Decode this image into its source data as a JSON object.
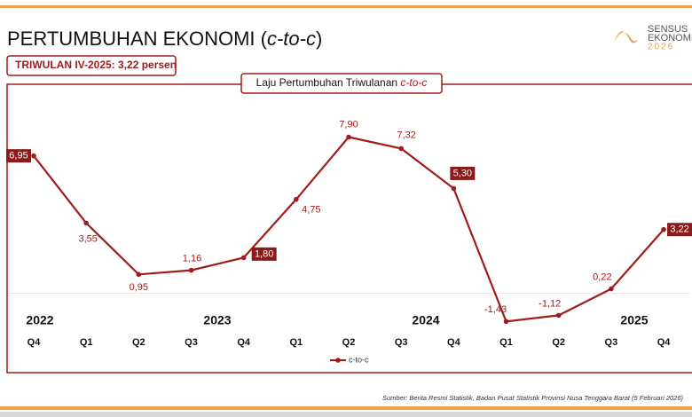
{
  "header": {
    "title": [
      "PERTUMBUHAN EKONOMI (",
      "c-to-c",
      ")"
    ],
    "badge": "TRIWULAN IV-2025: 3,22 persen",
    "logo": [
      "SENSUS",
      "EKONOMI",
      "2026"
    ]
  },
  "chart_data": {
    "type": "line",
    "title": [
      "Laju Pertumbuhan Triwulanan ",
      "c-to-c"
    ],
    "categories": [
      "Q4",
      "Q1",
      "Q2",
      "Q3",
      "Q4",
      "Q1",
      "Q2",
      "Q3",
      "Q4",
      "Q1",
      "Q2",
      "Q3",
      "Q4"
    ],
    "years": [
      "2022",
      "2023",
      "2024",
      "2025"
    ],
    "series": [
      {
        "name": "c-to-c",
        "color": "#a01c1c",
        "values": [
          6.95,
          3.55,
          0.95,
          1.16,
          1.8,
          4.75,
          7.9,
          7.32,
          5.3,
          -1.43,
          -1.12,
          0.22,
          3.22
        ],
        "value_labels": [
          "6,95",
          "3,55",
          "0,95",
          "1,16",
          "1,80",
          "4,75",
          "7,90",
          "7,32",
          "5,30",
          "-1,43",
          "-1,12",
          "0,22",
          "3,22"
        ]
      }
    ],
    "ylim": [
      -2,
      9
    ]
  },
  "footer": {
    "source": "Sumber: Berita Resmi Statistik, Badan Pusat Statistik Provinsi Nusa Tenggara Barat (5 Februari 2026)"
  }
}
